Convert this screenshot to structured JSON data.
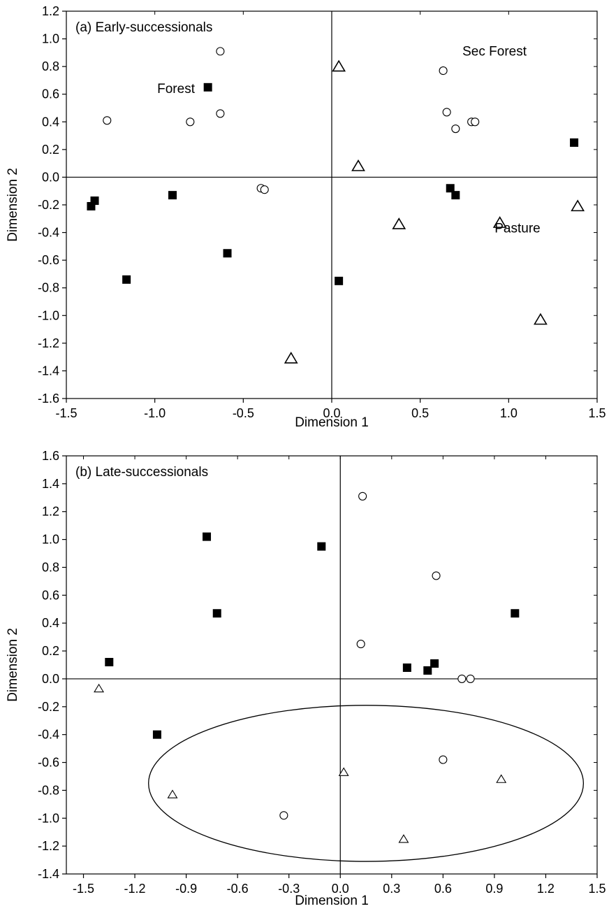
{
  "chart_data": [
    {
      "type": "scatter",
      "panel_label": "(a) Early-successionals",
      "xlabel": "Dimension 1",
      "ylabel": "Dimension 2",
      "xlim": [
        -1.5,
        1.5
      ],
      "ylim": [
        -1.6,
        1.2
      ],
      "x_ticks": [
        "-1.5",
        "-1.0",
        "-0.5",
        "0.0",
        "0.5",
        "1.0",
        "1.5"
      ],
      "y_ticks": [
        "1.2",
        "1.0",
        "0.8",
        "0.6",
        "0.4",
        "0.2",
        "0.0",
        "-0.2",
        "-0.4",
        "-0.6",
        "-0.8",
        "-1.0",
        "-1.2",
        "-1.4",
        "-1.6"
      ],
      "grid": false,
      "reference_lines": {
        "x": 0,
        "y": 0
      },
      "annotations": [
        {
          "text": "Forest",
          "x": -0.88,
          "y": 0.64
        },
        {
          "text": "Sec Forest",
          "x": 0.92,
          "y": 0.91
        },
        {
          "text": "Pasture",
          "x": 1.05,
          "y": -0.37
        }
      ],
      "series": [
        {
          "marker": "filled-square",
          "color": "#000000",
          "points": [
            [
              -0.7,
              0.65
            ],
            [
              -1.36,
              -0.21
            ],
            [
              -1.34,
              -0.17
            ],
            [
              -0.9,
              -0.13
            ],
            [
              -0.59,
              -0.55
            ],
            [
              -1.16,
              -0.74
            ],
            [
              0.67,
              -0.08
            ],
            [
              0.7,
              -0.13
            ],
            [
              0.04,
              -0.75
            ],
            [
              1.37,
              0.25
            ]
          ]
        },
        {
          "marker": "open-circle",
          "color": "#000000",
          "points": [
            [
              -0.63,
              0.91
            ],
            [
              -1.27,
              0.41
            ],
            [
              -0.8,
              0.4
            ],
            [
              -0.63,
              0.46
            ],
            [
              -0.4,
              -0.08
            ],
            [
              -0.38,
              -0.09
            ],
            [
              0.63,
              0.77
            ],
            [
              0.65,
              0.47
            ],
            [
              0.7,
              0.35
            ],
            [
              0.79,
              0.4
            ],
            [
              0.81,
              0.4
            ]
          ]
        },
        {
          "marker": "open-triangle",
          "color": "#000000",
          "points": [
            [
              0.04,
              0.8
            ],
            [
              0.15,
              0.08
            ],
            [
              0.38,
              -0.34
            ],
            [
              0.95,
              -0.33
            ],
            [
              1.39,
              -0.21
            ],
            [
              1.18,
              -1.03
            ],
            [
              -0.23,
              -1.31
            ]
          ]
        }
      ]
    },
    {
      "type": "scatter",
      "panel_label": "(b) Late-successionals",
      "xlabel": "Dimension 1",
      "ylabel": "Dimension 2",
      "xlim": [
        -1.6,
        1.5
      ],
      "ylim": [
        -1.4,
        1.6
      ],
      "x_ticks": [
        "-1.5",
        "-1.2",
        "-0.9",
        "-0.6",
        "-0.3",
        "0.0",
        "0.3",
        "0.6",
        "0.9",
        "1.2",
        "1.5"
      ],
      "y_ticks": [
        "1.6",
        "1.4",
        "1.2",
        "1.0",
        "0.8",
        "0.6",
        "0.4",
        "0.2",
        "0.0",
        "-0.2",
        "-0.4",
        "-0.6",
        "-0.8",
        "-1.0",
        "-1.2",
        "-1.4"
      ],
      "grid": false,
      "reference_lines": {
        "x": 0,
        "y": 0
      },
      "ellipse": {
        "cx": 0.15,
        "cy": -0.75,
        "rx": 1.27,
        "ry": 0.56
      },
      "series": [
        {
          "marker": "filled-square",
          "color": "#000000",
          "points": [
            [
              -1.35,
              0.12
            ],
            [
              -0.78,
              1.02
            ],
            [
              -0.72,
              0.47
            ],
            [
              -0.11,
              0.95
            ],
            [
              1.02,
              0.47
            ],
            [
              0.39,
              0.08
            ],
            [
              0.51,
              0.06
            ],
            [
              0.55,
              0.11
            ],
            [
              -1.07,
              -0.4
            ]
          ]
        },
        {
          "marker": "open-circle",
          "color": "#000000",
          "points": [
            [
              0.13,
              1.31
            ],
            [
              0.56,
              0.74
            ],
            [
              0.12,
              0.25
            ],
            [
              0.71,
              0.0
            ],
            [
              0.76,
              0.0
            ],
            [
              0.6,
              -0.58
            ],
            [
              -0.33,
              -0.98
            ]
          ]
        },
        {
          "marker": "open-triangle",
          "color": "#000000",
          "points": [
            [
              -1.41,
              -0.07
            ],
            [
              -0.98,
              -0.83
            ],
            [
              0.02,
              -0.67
            ],
            [
              0.94,
              -0.72
            ],
            [
              0.37,
              -1.15
            ]
          ]
        }
      ]
    }
  ]
}
